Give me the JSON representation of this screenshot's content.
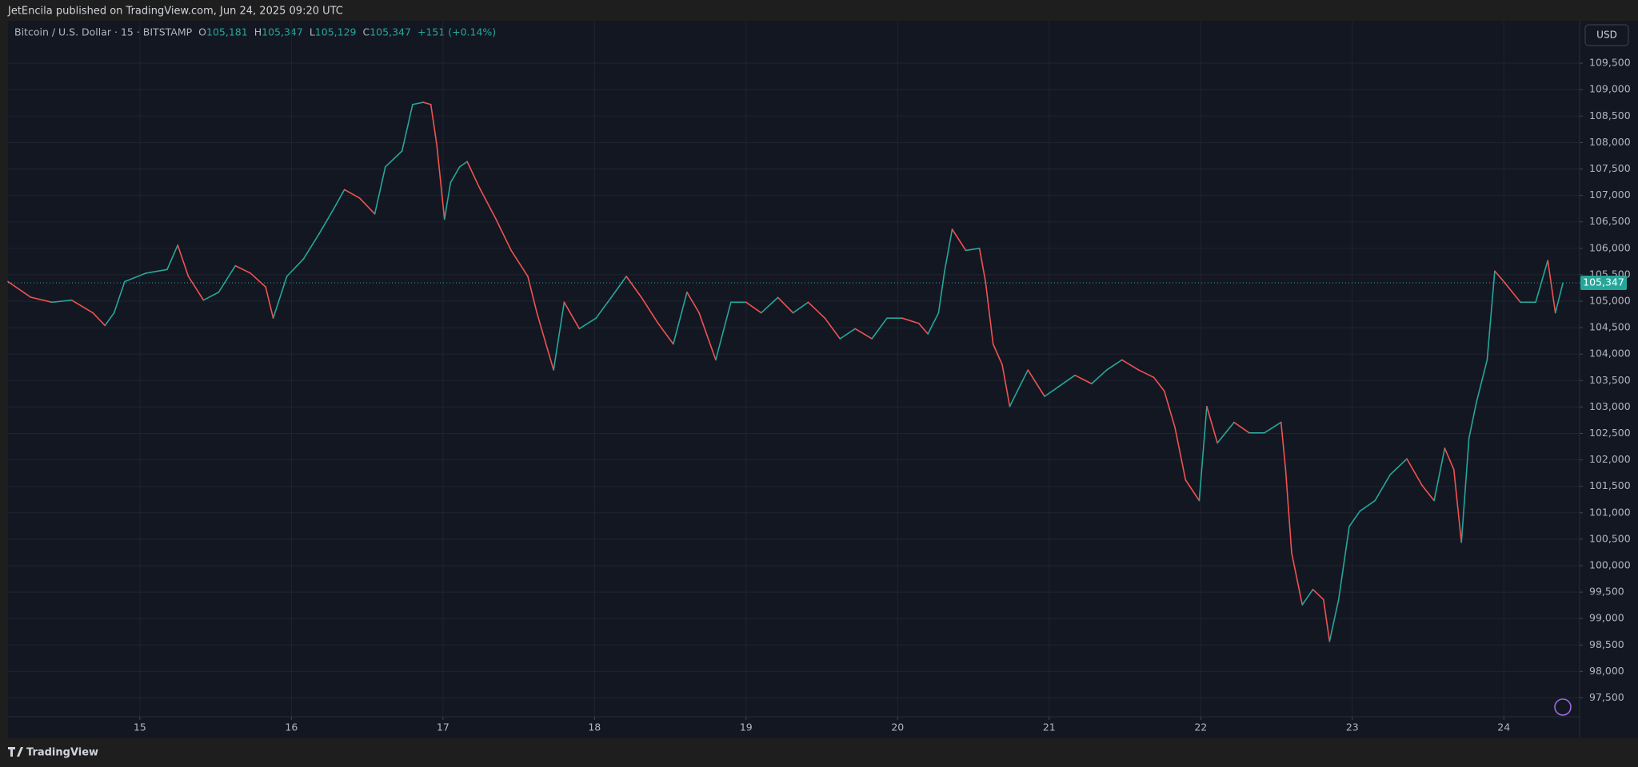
{
  "chart_data": {
    "type": "line",
    "published": "JetEncila published on TradingView.com, Jun 24, 2025 09:20 UTC",
    "symbol": "Bitcoin / U.S. Dollar · 15 · BITSTAMP",
    "ohlc": [
      {
        "key": "O",
        "text": "105,181"
      },
      {
        "key": "H",
        "text": "105,347"
      },
      {
        "key": "L",
        "text": "105,129"
      },
      {
        "key": "C",
        "text": "105,347"
      }
    ],
    "change": "+151 (+0.14%)",
    "currency": "USD",
    "brand": "TradingView",
    "last_price": {
      "value": 105347,
      "label": "105,347"
    },
    "xlim": [
      14.13,
      24.5
    ],
    "xticks": [
      15,
      16,
      17,
      18,
      19,
      20,
      21,
      22,
      23,
      24
    ],
    "ylim": [
      97145,
      110302
    ],
    "yticks": [
      {
        "value": 97500,
        "label": "97,500"
      },
      {
        "value": 98000,
        "label": "98,000"
      },
      {
        "value": 98500,
        "label": "98,500"
      },
      {
        "value": 99000,
        "label": "99,000"
      },
      {
        "value": 99500,
        "label": "99,500"
      },
      {
        "value": 100000,
        "label": "100,000"
      },
      {
        "value": 100500,
        "label": "100,500"
      },
      {
        "value": 101000,
        "label": "101,000"
      },
      {
        "value": 101500,
        "label": "101,500"
      },
      {
        "value": 102000,
        "label": "102,000"
      },
      {
        "value": 102500,
        "label": "102,500"
      },
      {
        "value": 103000,
        "label": "103,000"
      },
      {
        "value": 103500,
        "label": "103,500"
      },
      {
        "value": 104000,
        "label": "104,000"
      },
      {
        "value": 104500,
        "label": "104,500"
      },
      {
        "value": 105000,
        "label": "105,000"
      },
      {
        "value": 105500,
        "label": "105,500"
      },
      {
        "value": 106000,
        "label": "106,000"
      },
      {
        "value": 106500,
        "label": "106,500"
      },
      {
        "value": 107000,
        "label": "107,000"
      },
      {
        "value": 107500,
        "label": "107,500"
      },
      {
        "value": 108000,
        "label": "108,000"
      },
      {
        "value": 108500,
        "label": "108,500"
      },
      {
        "value": 109000,
        "label": "109,000"
      },
      {
        "value": 109500,
        "label": "109,500"
      }
    ],
    "grid": true,
    "series": [
      {
        "color": "#26a69a",
        "down_color": "#ef5350",
        "x": [
          14.13,
          14.28,
          14.42,
          14.55,
          14.69,
          14.77,
          14.83,
          14.9,
          15.04,
          15.18,
          15.25,
          15.32,
          15.42,
          15.52,
          15.63,
          15.73,
          15.83,
          15.88,
          15.97,
          16.08,
          16.18,
          16.28,
          16.35,
          16.45,
          16.55,
          16.62,
          16.73,
          16.8,
          16.87,
          16.92,
          16.96,
          17.01,
          17.05,
          17.11,
          17.16,
          17.24,
          17.35,
          17.45,
          17.56,
          17.62,
          17.69,
          17.73,
          17.8,
          17.9,
          18.01,
          18.11,
          18.21,
          18.31,
          18.42,
          18.52,
          18.61,
          18.69,
          18.8,
          18.9,
          19.0,
          19.1,
          19.21,
          19.31,
          19.41,
          19.52,
          19.62,
          19.72,
          19.83,
          19.93,
          20.03,
          20.14,
          20.2,
          20.27,
          20.31,
          20.36,
          20.45,
          20.54,
          20.58,
          20.63,
          20.69,
          20.74,
          20.79,
          20.86,
          20.97,
          21.07,
          21.17,
          21.28,
          21.38,
          21.48,
          21.59,
          21.69,
          21.76,
          21.83,
          21.9,
          21.99,
          22.04,
          22.11,
          22.22,
          22.32,
          22.42,
          22.53,
          22.56,
          22.6,
          22.67,
          22.74,
          22.81,
          22.85,
          22.91,
          22.98,
          23.05,
          23.15,
          23.25,
          23.36,
          23.46,
          23.54,
          23.61,
          23.67,
          23.72,
          23.77,
          23.82,
          23.89,
          23.94,
          24.0,
          24.11,
          24.21,
          24.29,
          24.34,
          24.39
        ],
        "values": [
          105370,
          105075,
          104980,
          105020,
          104780,
          104540,
          104780,
          105370,
          105530,
          105600,
          106060,
          105470,
          105020,
          105170,
          105670,
          105530,
          105270,
          104680,
          105470,
          105800,
          106260,
          106750,
          107110,
          106950,
          106650,
          107540,
          107840,
          108720,
          108760,
          108720,
          107940,
          106550,
          107240,
          107540,
          107640,
          107150,
          106550,
          105960,
          105470,
          104780,
          104090,
          103700,
          104980,
          104480,
          104680,
          105070,
          105470,
          105070,
          104580,
          104190,
          105170,
          104780,
          103890,
          104980,
          104980,
          104780,
          105070,
          104780,
          104980,
          104680,
          104290,
          104480,
          104290,
          104680,
          104680,
          104580,
          104380,
          104780,
          105570,
          106360,
          105960,
          106000,
          105370,
          104190,
          103800,
          103010,
          103300,
          103700,
          103200,
          103400,
          103600,
          103440,
          103700,
          103890,
          103700,
          103560,
          103300,
          102610,
          101620,
          101230,
          103010,
          102320,
          102710,
          102510,
          102510,
          102710,
          101820,
          100240,
          99260,
          99550,
          99360,
          98570,
          99360,
          100740,
          101030,
          101230,
          101720,
          102020,
          101520,
          101230,
          102220,
          101820,
          100440,
          102410,
          103100,
          103890,
          105570,
          105370,
          104980,
          104980,
          105770,
          104780,
          105347
        ]
      }
    ]
  }
}
